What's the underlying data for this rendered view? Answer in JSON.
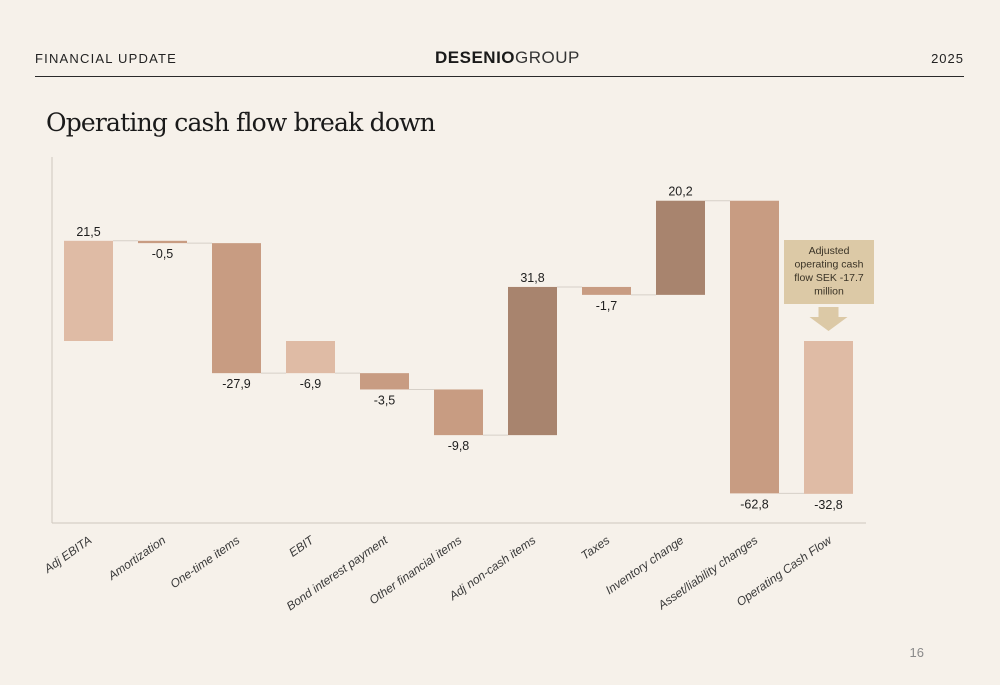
{
  "header": {
    "section": "FINANCIAL UPDATE",
    "brand_bold": "DESENIO",
    "brand_light": "GROUP",
    "year": "2025"
  },
  "title": "Operating cash flow break down",
  "page_number": "16",
  "colors": {
    "background": "#f6f1ea",
    "light_bar": "#dfbba5",
    "mid_bar": "#c89c82",
    "dark_bar": "#a8846e",
    "callout": "#dcc9a6",
    "axis": "#cfc8be"
  },
  "chart_data": {
    "type": "waterfall",
    "unit": "SEK million",
    "categories": [
      "Adj EBITA",
      "Amortization",
      "One-time items",
      "EBIT",
      "Bond interest payment",
      "Other financial items",
      "Adj non-cash items",
      "Taxes",
      "Inventory change",
      "Asset/liability changes",
      "Operating Cash Flow"
    ],
    "values": [
      21.5,
      -0.5,
      -27.9,
      -6.9,
      -3.5,
      -9.8,
      31.8,
      -1.7,
      20.2,
      -62.8,
      -32.8
    ],
    "labels": [
      "21,5",
      "-0,5",
      "-27,9",
      "-6,9",
      "-3,5",
      "-9,8",
      "31,8",
      "-1,7",
      "20,2",
      "-62,8",
      "-32,8"
    ],
    "kinds": [
      "total",
      "delta",
      "delta",
      "total",
      "delta",
      "delta",
      "delta",
      "delta",
      "delta",
      "delta",
      "total"
    ],
    "bar_colors": [
      "#dfbba5",
      "#c89c82",
      "#c89c82",
      "#dfbba5",
      "#c89c82",
      "#c89c82",
      "#a8846e",
      "#c89c82",
      "#a8846e",
      "#c89c82",
      "#dfbba5"
    ],
    "yrange": [
      -68,
      30
    ],
    "callout": {
      "lines": [
        "Adjusted",
        "operating cash",
        "flow SEK -17.7",
        "million"
      ],
      "target_category": "Operating Cash Flow"
    },
    "grid": false,
    "legend": "none"
  }
}
